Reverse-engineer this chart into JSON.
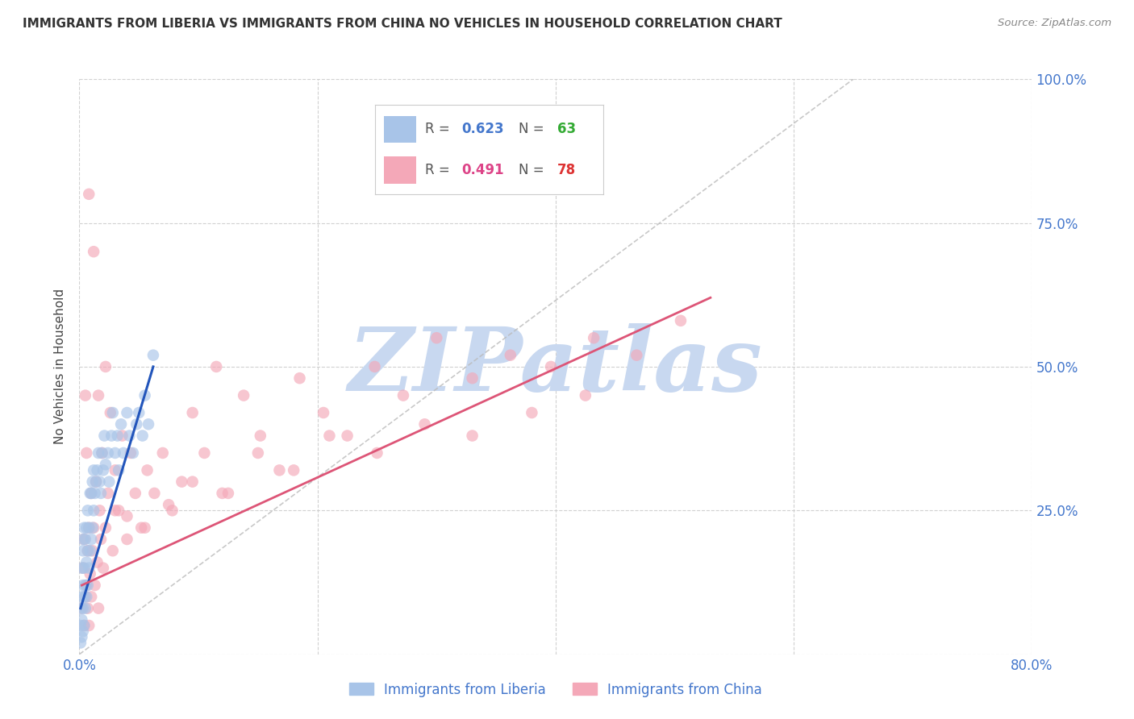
{
  "title": "IMMIGRANTS FROM LIBERIA VS IMMIGRANTS FROM CHINA NO VEHICLES IN HOUSEHOLD CORRELATION CHART",
  "source": "Source: ZipAtlas.com",
  "ylabel": "No Vehicles in Household",
  "xlim": [
    0,
    0.8
  ],
  "ylim": [
    0,
    1.0
  ],
  "R_liberia": 0.623,
  "N_liberia": 63,
  "R_china": 0.491,
  "N_china": 78,
  "color_liberia": "#a8c4e8",
  "color_china": "#f4a8b8",
  "line_color_liberia": "#2255bb",
  "line_color_china": "#dd5577",
  "watermark": "ZIPatlas",
  "watermark_color_zip": "#c8d8f0",
  "watermark_color_atlas": "#e0c8d0",
  "background_color": "#ffffff",
  "grid_color": "#cccccc",
  "title_color": "#333333",
  "axis_color": "#4477cc",
  "legend_R_color_liberia": "#4477cc",
  "legend_N_color_liberia": "#33aa33",
  "legend_R_color_china": "#dd4488",
  "legend_N_color_china": "#dd3333",
  "liberia_x": [
    0.001,
    0.001,
    0.001,
    0.002,
    0.002,
    0.002,
    0.002,
    0.003,
    0.003,
    0.003,
    0.003,
    0.003,
    0.004,
    0.004,
    0.004,
    0.004,
    0.005,
    0.005,
    0.005,
    0.006,
    0.006,
    0.006,
    0.007,
    0.007,
    0.007,
    0.008,
    0.008,
    0.009,
    0.009,
    0.01,
    0.01,
    0.011,
    0.011,
    0.012,
    0.012,
    0.013,
    0.014,
    0.015,
    0.016,
    0.017,
    0.018,
    0.019,
    0.02,
    0.021,
    0.022,
    0.024,
    0.025,
    0.027,
    0.028,
    0.03,
    0.032,
    0.033,
    0.035,
    0.037,
    0.04,
    0.042,
    0.045,
    0.048,
    0.05,
    0.053,
    0.055,
    0.058,
    0.062
  ],
  "liberia_y": [
    0.02,
    0.05,
    0.08,
    0.03,
    0.06,
    0.1,
    0.15,
    0.04,
    0.08,
    0.12,
    0.18,
    0.2,
    0.05,
    0.1,
    0.15,
    0.22,
    0.08,
    0.12,
    0.2,
    0.1,
    0.16,
    0.22,
    0.12,
    0.18,
    0.25,
    0.15,
    0.22,
    0.18,
    0.28,
    0.2,
    0.28,
    0.22,
    0.3,
    0.25,
    0.32,
    0.28,
    0.3,
    0.32,
    0.35,
    0.3,
    0.28,
    0.35,
    0.32,
    0.38,
    0.33,
    0.35,
    0.3,
    0.38,
    0.42,
    0.35,
    0.38,
    0.32,
    0.4,
    0.35,
    0.42,
    0.38,
    0.35,
    0.4,
    0.42,
    0.38,
    0.45,
    0.4,
    0.52
  ],
  "china_x": [
    0.002,
    0.003,
    0.004,
    0.004,
    0.005,
    0.005,
    0.006,
    0.006,
    0.007,
    0.007,
    0.008,
    0.008,
    0.009,
    0.01,
    0.01,
    0.011,
    0.012,
    0.013,
    0.014,
    0.015,
    0.016,
    0.017,
    0.018,
    0.019,
    0.02,
    0.022,
    0.024,
    0.026,
    0.028,
    0.03,
    0.033,
    0.036,
    0.04,
    0.043,
    0.047,
    0.052,
    0.057,
    0.063,
    0.07,
    0.078,
    0.086,
    0.095,
    0.105,
    0.115,
    0.125,
    0.138,
    0.152,
    0.168,
    0.185,
    0.205,
    0.225,
    0.248,
    0.272,
    0.3,
    0.33,
    0.362,
    0.396,
    0.432,
    0.468,
    0.505,
    0.008,
    0.012,
    0.016,
    0.022,
    0.03,
    0.04,
    0.055,
    0.075,
    0.095,
    0.12,
    0.15,
    0.18,
    0.21,
    0.25,
    0.29,
    0.33,
    0.38,
    0.425
  ],
  "china_y": [
    0.08,
    0.15,
    0.05,
    0.2,
    0.1,
    0.45,
    0.12,
    0.35,
    0.08,
    0.18,
    0.05,
    0.22,
    0.14,
    0.1,
    0.28,
    0.18,
    0.22,
    0.12,
    0.3,
    0.16,
    0.08,
    0.25,
    0.2,
    0.35,
    0.15,
    0.22,
    0.28,
    0.42,
    0.18,
    0.32,
    0.25,
    0.38,
    0.2,
    0.35,
    0.28,
    0.22,
    0.32,
    0.28,
    0.35,
    0.25,
    0.3,
    0.42,
    0.35,
    0.5,
    0.28,
    0.45,
    0.38,
    0.32,
    0.48,
    0.42,
    0.38,
    0.5,
    0.45,
    0.55,
    0.48,
    0.52,
    0.5,
    0.55,
    0.52,
    0.58,
    0.8,
    0.7,
    0.45,
    0.5,
    0.25,
    0.24,
    0.22,
    0.26,
    0.3,
    0.28,
    0.35,
    0.32,
    0.38,
    0.35,
    0.4,
    0.38,
    0.42,
    0.45
  ],
  "liberia_line_x": [
    0.001,
    0.062
  ],
  "liberia_line_y": [
    0.08,
    0.5
  ],
  "china_line_x": [
    0.002,
    0.53
  ],
  "china_line_y": [
    0.12,
    0.62
  ]
}
